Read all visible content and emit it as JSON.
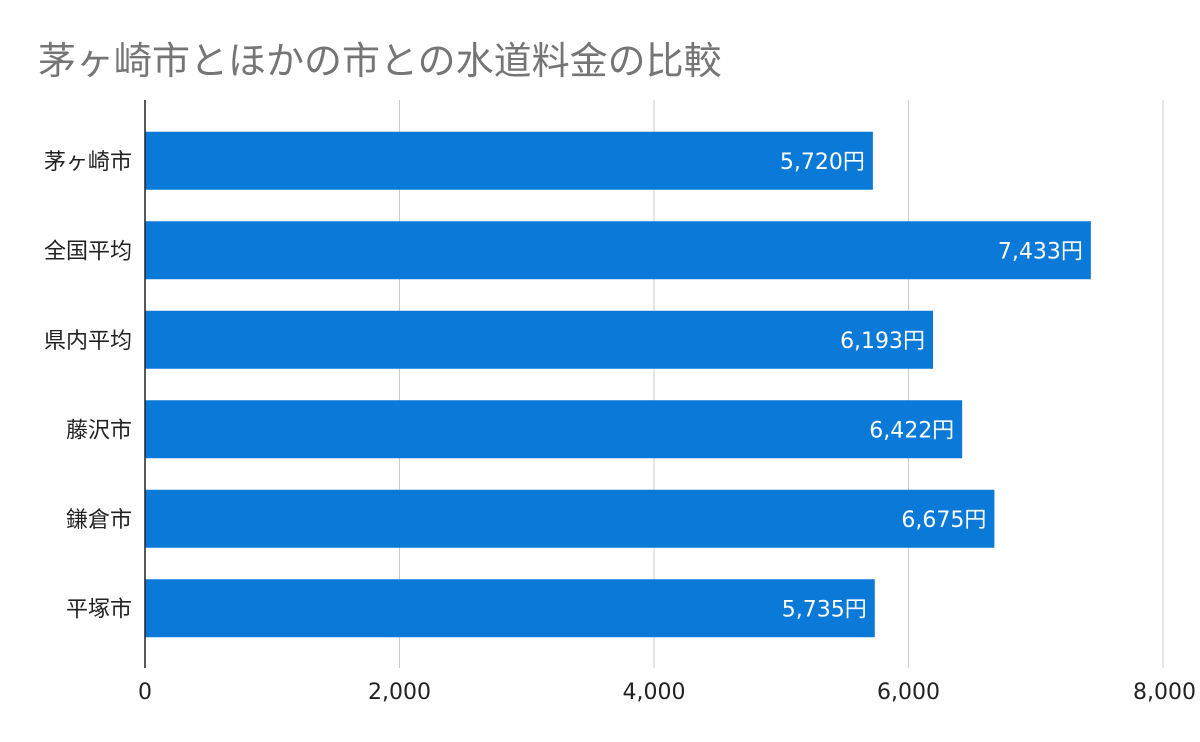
{
  "chart_data": {
    "type": "bar",
    "orientation": "horizontal",
    "title": "茅ヶ崎市とほかの市との水道料金の比較",
    "categories": [
      "茅ヶ崎市",
      "全国平均",
      "県内平均",
      "藤沢市",
      "鎌倉市",
      "平塚市"
    ],
    "values": [
      5720,
      7433,
      6193,
      6422,
      6675,
      5735
    ],
    "data_labels": [
      "5,720円",
      "7,433円",
      "6,193円",
      "6,422円",
      "6,675円",
      "5,735円"
    ],
    "xlim": [
      0,
      8000
    ],
    "x_ticks": [
      0,
      2000,
      4000,
      6000,
      8000
    ],
    "x_tick_labels": [
      "0",
      "2,000",
      "4,000",
      "6,000",
      "8,000"
    ],
    "xlabel": "",
    "ylabel": "",
    "grid": true,
    "legend": "none",
    "bar_color": "#0b79d8",
    "grid_color": "#cccccc",
    "axis_color": "#222222"
  }
}
